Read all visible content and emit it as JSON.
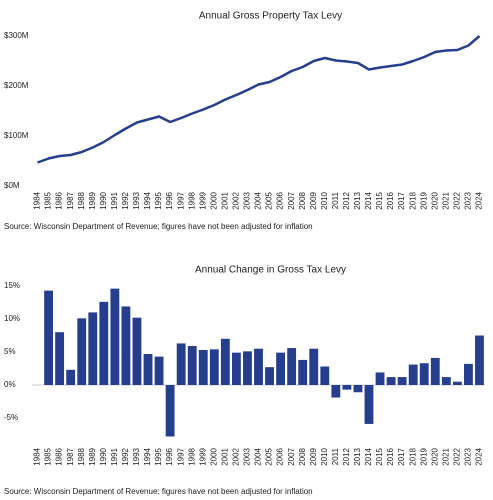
{
  "chart_data": [
    {
      "type": "line",
      "title": "Annual Gross Property Tax Levy",
      "categories": [
        "1984",
        "1985",
        "1986",
        "1987",
        "1988",
        "1989",
        "1990",
        "1991",
        "1992",
        "1993",
        "1994",
        "1995",
        "1996",
        "1997",
        "1998",
        "1999",
        "2000",
        "2001",
        "2002",
        "2003",
        "2004",
        "2005",
        "2006",
        "2007",
        "2008",
        "2009",
        "2010",
        "2011",
        "2012",
        "2013",
        "2014",
        "2015",
        "2016",
        "2017",
        "2018",
        "2019",
        "2020",
        "2021",
        "2022",
        "2023",
        "2024"
      ],
      "values": [
        47,
        55,
        60,
        62,
        68,
        77,
        88,
        102,
        115,
        127,
        133,
        139,
        128,
        136,
        145,
        153,
        162,
        173,
        182,
        192,
        203,
        208,
        218,
        230,
        238,
        250,
        256,
        251,
        249,
        246,
        233,
        237,
        240,
        243,
        250,
        258,
        268,
        271,
        272,
        281,
        300
      ],
      "color": "#253e8e",
      "ylim": [
        0,
        300
      ],
      "yticks": [
        {
          "value": 0,
          "label": "$0M"
        },
        {
          "value": 100,
          "label": "$100M"
        },
        {
          "value": 200,
          "label": "$200M"
        },
        {
          "value": 300,
          "label": "$300M"
        }
      ],
      "grid": false,
      "source": "Source: Wisconsin Department of Revenue; figures have not been adjusted for inflation"
    },
    {
      "type": "bar",
      "title": "Annual Change in Gross Tax Levy",
      "categories": [
        "1984",
        "1985",
        "1986",
        "1987",
        "1988",
        "1989",
        "1990",
        "1991",
        "1992",
        "1993",
        "1994",
        "1995",
        "1996",
        "1997",
        "1998",
        "1999",
        "2000",
        "2001",
        "2002",
        "2003",
        "2004",
        "2005",
        "2006",
        "2007",
        "2008",
        "2009",
        "2010",
        "2011",
        "2012",
        "2013",
        "2014",
        "2015",
        "2016",
        "2017",
        "2018",
        "2019",
        "2020",
        "2021",
        "2022",
        "2023",
        "2024"
      ],
      "values": [
        null,
        14.3,
        8,
        2.3,
        10.1,
        11,
        12.6,
        14.6,
        11.9,
        10.2,
        4.7,
        4.3,
        -7.8,
        6.3,
        5.9,
        5.3,
        5.4,
        7,
        4.9,
        5.1,
        5.5,
        2.7,
        4.9,
        5.6,
        3.8,
        5.5,
        2.8,
        -1.9,
        -0.7,
        -1.1,
        -5.9,
        1.9,
        1.2,
        1.2,
        3.1,
        3.3,
        4.1,
        1.2,
        0.5,
        3.2,
        7.5
      ],
      "color": "#253e8e",
      "ylim": [
        -8,
        16
      ],
      "yticks": [
        {
          "value": -5,
          "label": "-5%"
        },
        {
          "value": 0,
          "label": "0%"
        },
        {
          "value": 5,
          "label": "5%"
        },
        {
          "value": 10,
          "label": "10%"
        },
        {
          "value": 15,
          "label": "15%"
        }
      ],
      "grid": false,
      "source": "Source: Wisconsin Department of Revenue; figures have not been adjusted for inflation"
    }
  ]
}
